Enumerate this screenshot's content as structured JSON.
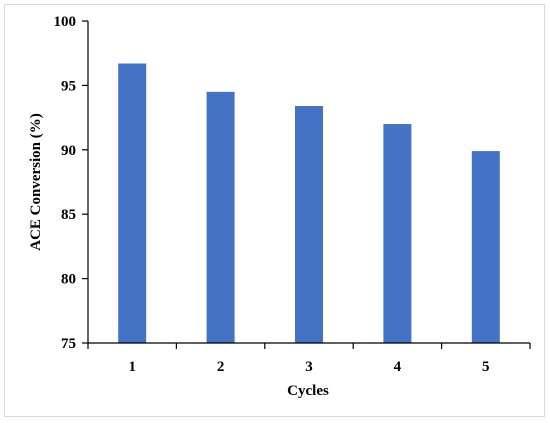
{
  "chart_data": {
    "type": "bar",
    "categories": [
      "1",
      "2",
      "3",
      "4",
      "5"
    ],
    "values": [
      96.7,
      94.5,
      93.4,
      92.0,
      89.9
    ],
    "xlabel": "Cycles",
    "ylabel": "ACE Conversion (%)",
    "ylim": [
      75,
      100
    ],
    "yticks": [
      75,
      80,
      85,
      90,
      95,
      100
    ],
    "bar_color": "#4472C4",
    "grid": false,
    "legend": "none"
  }
}
